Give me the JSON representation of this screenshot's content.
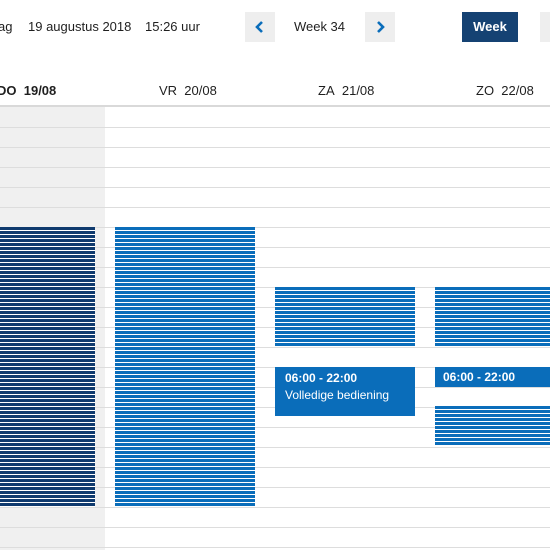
{
  "topbar": {
    "today_partial": "ag",
    "date": "19 augustus 2018",
    "time": "15:26 uur",
    "week_label": "Week 34",
    "week_button": "Week"
  },
  "days": [
    {
      "prefix": "DO",
      "date": "19/08"
    },
    {
      "prefix": "VR",
      "date": "20/08"
    },
    {
      "prefix": "ZA",
      "date": "21/08"
    },
    {
      "prefix": "ZO",
      "date": "22/08"
    }
  ],
  "events": [
    {
      "time": "06:00 - 22:00",
      "label": "Volledige bediening"
    },
    {
      "time": "06:00 - 22:00"
    }
  ],
  "colors": {
    "dark_block": "#0f3a6e",
    "light_block": "#0a6dba",
    "week_button": "#154273",
    "today_column": "#f0f0f0"
  }
}
